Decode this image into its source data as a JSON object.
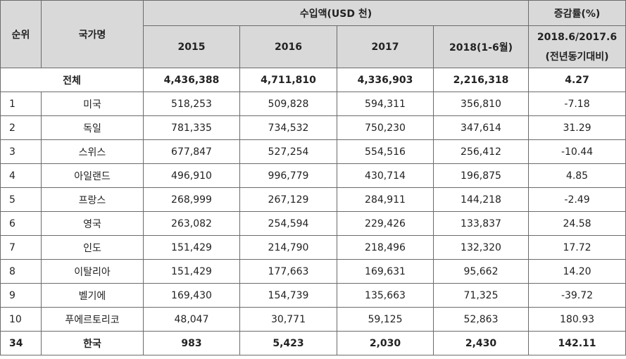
{
  "header": {
    "rank": "순위",
    "country": "국가명",
    "import_amount": "수입액(USD 천)",
    "change_rate": "증감률(%)",
    "years": [
      "2015",
      "2016",
      "2017",
      "2018(1-6월)"
    ],
    "change_line1": "2018.6/2017.6",
    "change_line2": "(전년동기대비)"
  },
  "total": {
    "label": "전체",
    "v2015": "4,436,388",
    "v2016": "4,711,810",
    "v2017": "4,336,903",
    "v2018": "2,216,318",
    "change": "4.27"
  },
  "rows": [
    {
      "rank": "1",
      "country": "미국",
      "v2015": "518,253",
      "v2016": "509,828",
      "v2017": "594,311",
      "v2018": "356,810",
      "change": "-7.18"
    },
    {
      "rank": "2",
      "country": "독일",
      "v2015": "781,335",
      "v2016": "734,532",
      "v2017": "750,230",
      "v2018": "347,614",
      "change": "31.29"
    },
    {
      "rank": "3",
      "country": "스위스",
      "v2015": "677,847",
      "v2016": "527,254",
      "v2017": "554,516",
      "v2018": "256,412",
      "change": "-10.44"
    },
    {
      "rank": "4",
      "country": "아일랜드",
      "v2015": "496,910",
      "v2016": "996,779",
      "v2017": "430,714",
      "v2018": "196,875",
      "change": "4.85"
    },
    {
      "rank": "5",
      "country": "프랑스",
      "v2015": "268,999",
      "v2016": "267,129",
      "v2017": "284,911",
      "v2018": "144,218",
      "change": "-2.49"
    },
    {
      "rank": "6",
      "country": "영국",
      "v2015": "263,082",
      "v2016": "254,594",
      "v2017": "229,426",
      "v2018": "133,837",
      "change": "24.58"
    },
    {
      "rank": "7",
      "country": "인도",
      "v2015": "151,429",
      "v2016": "214,790",
      "v2017": "218,496",
      "v2018": "132,320",
      "change": "17.72"
    },
    {
      "rank": "8",
      "country": "이탈리아",
      "v2015": "151,429",
      "v2016": "177,663",
      "v2017": "169,631",
      "v2018": "95,662",
      "change": "14.20"
    },
    {
      "rank": "9",
      "country": "벨기에",
      "v2015": "169,430",
      "v2016": "154,739",
      "v2017": "135,663",
      "v2018": "71,325",
      "change": "-39.72"
    },
    {
      "rank": "10",
      "country": "푸에르토리코",
      "v2015": "48,047",
      "v2016": "30,771",
      "v2017": "59,125",
      "v2018": "52,863",
      "change": "180.93"
    }
  ],
  "korea": {
    "rank": "34",
    "country": "한국",
    "v2015": "983",
    "v2016": "5,423",
    "v2017": "2,030",
    "v2018": "2,430",
    "change": "142.11"
  }
}
